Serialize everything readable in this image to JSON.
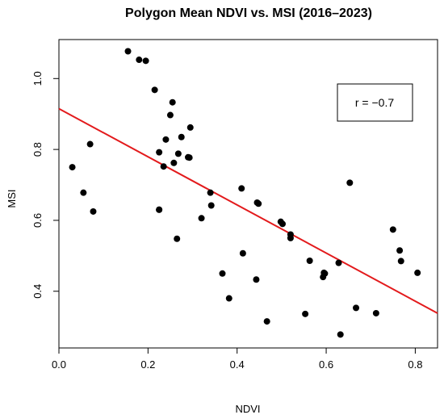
{
  "chart_data": {
    "type": "scatter",
    "title": "Polygon Mean NDVI vs. MSI (2016–2023)",
    "xlabel": "NDVI",
    "ylabel": "MSI",
    "xlim": [
      0.0,
      0.85
    ],
    "ylim": [
      0.24,
      1.11
    ],
    "xticks": [
      0.0,
      0.2,
      0.4,
      0.6,
      0.8
    ],
    "xtick_labels": [
      "0.0",
      "0.2",
      "0.4",
      "0.6",
      "0.8"
    ],
    "yticks": [
      0.4,
      0.6,
      0.8,
      1.0
    ],
    "ytick_labels": [
      "0.4",
      "0.6",
      "0.8",
      "1.0"
    ],
    "grid": false,
    "legend_text": "r = −0.7",
    "legend_position": "top-right",
    "point_color": "#000000",
    "line_color": "#e31a1c",
    "trend_line": {
      "x": [
        0.0,
        0.85
      ],
      "y": [
        0.915,
        0.338
      ]
    },
    "points": {
      "x": [
        0.155,
        0.18,
        0.195,
        0.215,
        0.225,
        0.255,
        0.25,
        0.24,
        0.295,
        0.275,
        0.268,
        0.29,
        0.293,
        0.225,
        0.258,
        0.235,
        0.03,
        0.07,
        0.055,
        0.077,
        0.225,
        0.265,
        0.34,
        0.342,
        0.32,
        0.41,
        0.445,
        0.448,
        0.498,
        0.502,
        0.52,
        0.52,
        0.413,
        0.367,
        0.382,
        0.443,
        0.467,
        0.553,
        0.563,
        0.595,
        0.597,
        0.593,
        0.628,
        0.632,
        0.653,
        0.667,
        0.712,
        0.75,
        0.765,
        0.768,
        0.805
      ],
      "y": [
        1.077,
        1.053,
        1.05,
        0.968,
        0.792,
        0.933,
        0.897,
        0.828,
        0.862,
        0.835,
        0.788,
        0.778,
        0.777,
        0.63,
        0.762,
        0.752,
        0.75,
        0.815,
        0.678,
        0.625,
        0.63,
        0.548,
        0.678,
        0.642,
        0.606,
        0.69,
        0.65,
        0.647,
        0.596,
        0.59,
        0.56,
        0.55,
        0.507,
        0.45,
        0.38,
        0.433,
        0.315,
        0.336,
        0.486,
        0.452,
        0.45,
        0.44,
        0.48,
        0.278,
        0.706,
        0.353,
        0.338,
        0.574,
        0.515,
        0.485,
        0.452
      ]
    }
  }
}
